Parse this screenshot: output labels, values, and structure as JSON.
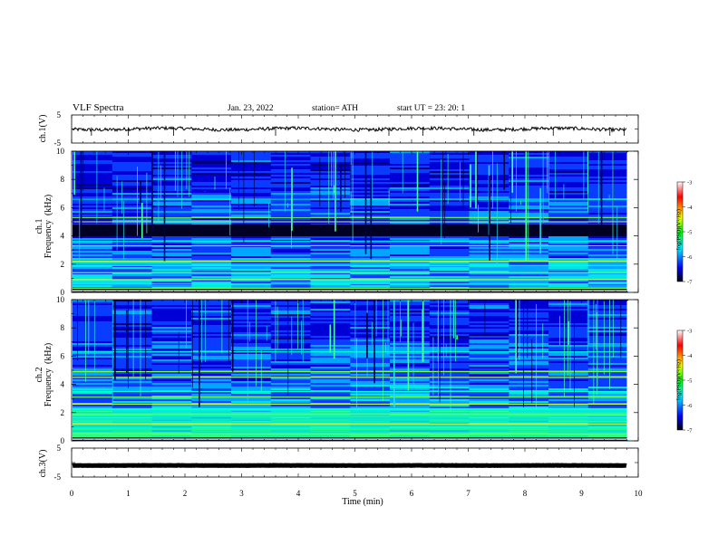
{
  "header": {
    "title": "VLF  Spectra",
    "date": "Jan. 23, 2022",
    "station": "station= ATH",
    "start": "start  UT  =    23: 20: 1"
  },
  "chart_data": [
    {
      "type": "line",
      "panel": "ch1-waveform",
      "ylabel": "ch.1(V)",
      "ylim": [
        -5,
        5
      ],
      "yticks": [
        "5",
        "-5"
      ],
      "xlim": [
        0,
        10
      ],
      "x_end": 9.8,
      "trace_level": 0,
      "trace_noise": 0.6
    },
    {
      "type": "heatmap",
      "panel": "ch1-spectrogram",
      "ylabel": "ch.1\nFrequency  (kHz)",
      "yticks": [
        "0",
        "2",
        "4",
        "6",
        "8",
        "10"
      ],
      "ylim": [
        0,
        10
      ],
      "xlim": [
        0,
        10
      ],
      "x_end": 9.8,
      "colorbar": {
        "label": "log(PSD)(V²/Hz)",
        "range": [
          -7,
          -3
        ],
        "ticks": [
          "-3",
          "-4",
          "-5",
          "-6",
          "-7"
        ],
        "colors": [
          "#000000",
          "#0000ff",
          "#00ffff",
          "#00ff00",
          "#ffff00",
          "#ff0000",
          "#ffffff"
        ]
      },
      "bright_lines_khz": [
        0.3,
        0.6,
        0.9,
        1.4,
        1.9,
        2.2,
        3.3,
        3.6,
        5.0,
        5.3,
        6.6
      ],
      "dark_band_khz": [
        4.0,
        4.8
      ]
    },
    {
      "type": "heatmap",
      "panel": "ch2-spectrogram",
      "ylabel": "ch.2\nFrequency  (kHz)",
      "yticks": [
        "0",
        "2",
        "4",
        "6",
        "8",
        "10"
      ],
      "ylim": [
        0,
        10
      ],
      "xlim": [
        0,
        10
      ],
      "x_end": 9.8,
      "colorbar": {
        "label": "log(PSD)(V²/Hz)",
        "range": [
          -7,
          -3
        ],
        "ticks": [
          "-3",
          "-4",
          "-5",
          "-6",
          "-7"
        ],
        "colors": [
          "#000000",
          "#0000ff",
          "#00ffff",
          "#00ff00",
          "#ffff00",
          "#ff0000",
          "#ffffff"
        ]
      },
      "bright_lines_khz": [
        0.5,
        0.9,
        1.2,
        1.9,
        2.2,
        2.6,
        3.1,
        3.5,
        4.5,
        4.9,
        6.3
      ],
      "green_band_khz": [
        0.3,
        2.3
      ]
    },
    {
      "type": "line",
      "panel": "ch3-waveform",
      "ylabel": "ch.3(V)",
      "ylim": [
        -5,
        5
      ],
      "yticks": [
        "5",
        "-5"
      ],
      "xlim": [
        0,
        10
      ],
      "x_end": 9.8,
      "trace_level": -1,
      "trace_noise": 0.05
    }
  ],
  "xaxis": {
    "label": "Time  (min)",
    "ticks": [
      "0",
      "1",
      "2",
      "3",
      "4",
      "5",
      "6",
      "7",
      "8",
      "9",
      "10"
    ]
  }
}
